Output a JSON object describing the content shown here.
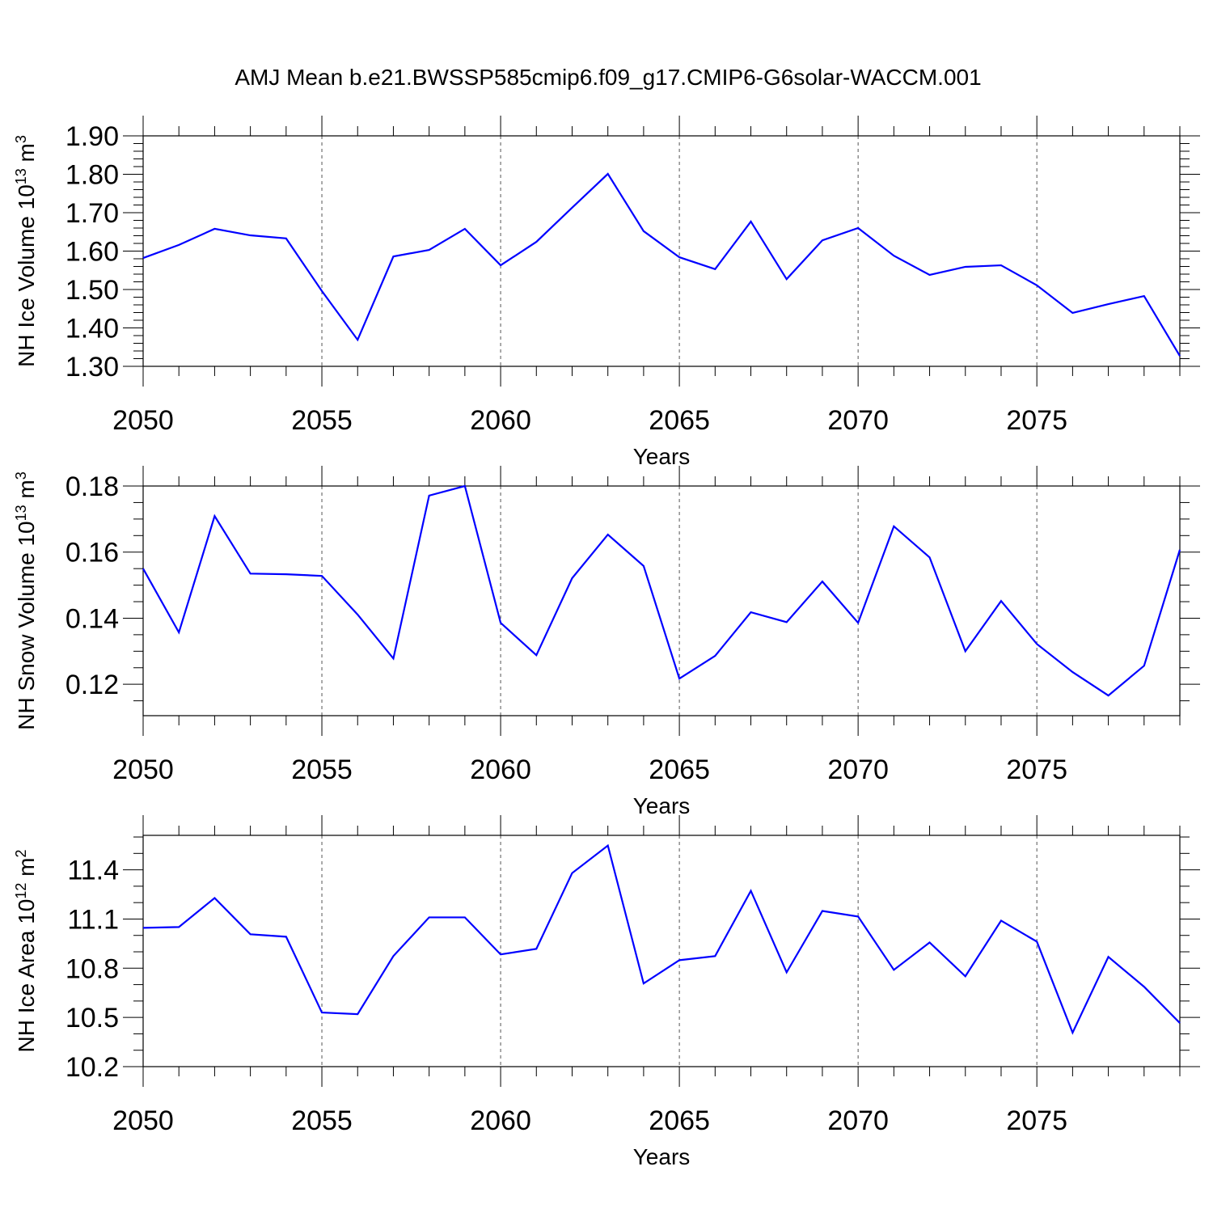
{
  "title": "AMJ Mean b.e21.BWSSP585cmip6.f09_g17.CMIP6-G6solar-WACCM.001",
  "line_color": "#0000ff",
  "chart_data": [
    {
      "type": "line",
      "xlabel": "Years",
      "ylabel": {
        "text": "NH Ice Volume 10",
        "exp": "13",
        "unit": " m",
        "unit_exp": "3"
      },
      "xlim": [
        2050,
        2079
      ],
      "ylim": [
        1.3,
        1.9
      ],
      "yticks": [
        1.3,
        1.4,
        1.5,
        1.6,
        1.7,
        1.8,
        1.9
      ],
      "ytick_labels": [
        "1.30",
        "1.40",
        "1.50",
        "1.60",
        "1.70",
        "1.80",
        "1.90"
      ],
      "yminor_step": 0.02,
      "xticks": [
        2050,
        2055,
        2060,
        2065,
        2070,
        2075
      ],
      "xtick_labels": [
        "2050",
        "2055",
        "2060",
        "2065",
        "2070",
        "2075"
      ],
      "grid": "dashed vertical at major x ticks",
      "x": [
        2050,
        2051,
        2052,
        2053,
        2054,
        2055,
        2056,
        2057,
        2058,
        2059,
        2060,
        2061,
        2062,
        2063,
        2064,
        2065,
        2066,
        2067,
        2068,
        2069,
        2070,
        2071,
        2072,
        2073,
        2074,
        2075,
        2076,
        2077,
        2078,
        2079
      ],
      "values": [
        1.582,
        1.616,
        1.658,
        1.641,
        1.633,
        1.496,
        1.369,
        1.586,
        1.603,
        1.658,
        1.563,
        1.624,
        1.713,
        1.801,
        1.652,
        1.584,
        1.553,
        1.677,
        1.527,
        1.628,
        1.66,
        1.588,
        1.538,
        1.559,
        1.563,
        1.511,
        1.439,
        1.462,
        1.483,
        1.327
      ]
    },
    {
      "type": "line",
      "xlabel": "Years",
      "ylabel": {
        "text": "NH Snow Volume 10",
        "exp": "13",
        "unit": " m",
        "unit_exp": "3"
      },
      "xlim": [
        2050,
        2079
      ],
      "ylim": [
        0.1105,
        0.18
      ],
      "yticks": [
        0.12,
        0.14,
        0.16,
        0.18
      ],
      "ytick_labels": [
        "0.12",
        "0.14",
        "0.16",
        "0.18"
      ],
      "yminor_step": 0.005,
      "xticks": [
        2050,
        2055,
        2060,
        2065,
        2070,
        2075
      ],
      "xtick_labels": [
        "2050",
        "2055",
        "2060",
        "2065",
        "2070",
        "2075"
      ],
      "grid": "dashed vertical at major x ticks",
      "x": [
        2050,
        2051,
        2052,
        2053,
        2054,
        2055,
        2056,
        2057,
        2058,
        2059,
        2060,
        2061,
        2062,
        2063,
        2064,
        2065,
        2066,
        2067,
        2068,
        2069,
        2070,
        2071,
        2072,
        2073,
        2074,
        2075,
        2076,
        2077,
        2078,
        2079
      ],
      "values": [
        0.155,
        0.1357,
        0.1709,
        0.1535,
        0.1533,
        0.1528,
        0.1411,
        0.1278,
        0.1771,
        0.18,
        0.1386,
        0.1288,
        0.1521,
        0.1653,
        0.1558,
        0.1217,
        0.1286,
        0.1418,
        0.1388,
        0.1511,
        0.1386,
        0.1678,
        0.1584,
        0.13,
        0.1452,
        0.1322,
        0.1237,
        0.1166,
        0.1256,
        0.1607
      ]
    },
    {
      "type": "line",
      "xlabel": "Years",
      "ylabel": {
        "text": "NH Ice Area 10",
        "exp": "12",
        "unit": " m",
        "unit_exp": "2"
      },
      "xlim": [
        2050,
        2079
      ],
      "ylim": [
        10.2,
        11.61
      ],
      "yticks": [
        10.2,
        10.5,
        10.8,
        11.1,
        11.4
      ],
      "ytick_labels": [
        "10.2",
        "10.5",
        "10.8",
        "11.1",
        "11.4"
      ],
      "yminor_step": 0.1,
      "xticks": [
        2050,
        2055,
        2060,
        2065,
        2070,
        2075
      ],
      "xtick_labels": [
        "2050",
        "2055",
        "2060",
        "2065",
        "2070",
        "2075"
      ],
      "grid": "dashed vertical at major x ticks",
      "x": [
        2050,
        2051,
        2052,
        2053,
        2054,
        2055,
        2056,
        2057,
        2058,
        2059,
        2060,
        2061,
        2062,
        2063,
        2064,
        2065,
        2066,
        2067,
        2068,
        2069,
        2070,
        2071,
        2072,
        2073,
        2074,
        2075,
        2076,
        2077,
        2078,
        2079
      ],
      "values": [
        11.046,
        11.051,
        11.228,
        11.007,
        10.992,
        10.53,
        10.52,
        10.874,
        11.11,
        11.11,
        10.884,
        10.918,
        11.38,
        11.548,
        10.707,
        10.849,
        10.874,
        11.272,
        10.775,
        11.149,
        11.115,
        10.79,
        10.957,
        10.751,
        11.09,
        10.962,
        10.407,
        10.869,
        10.687,
        10.466
      ]
    }
  ]
}
